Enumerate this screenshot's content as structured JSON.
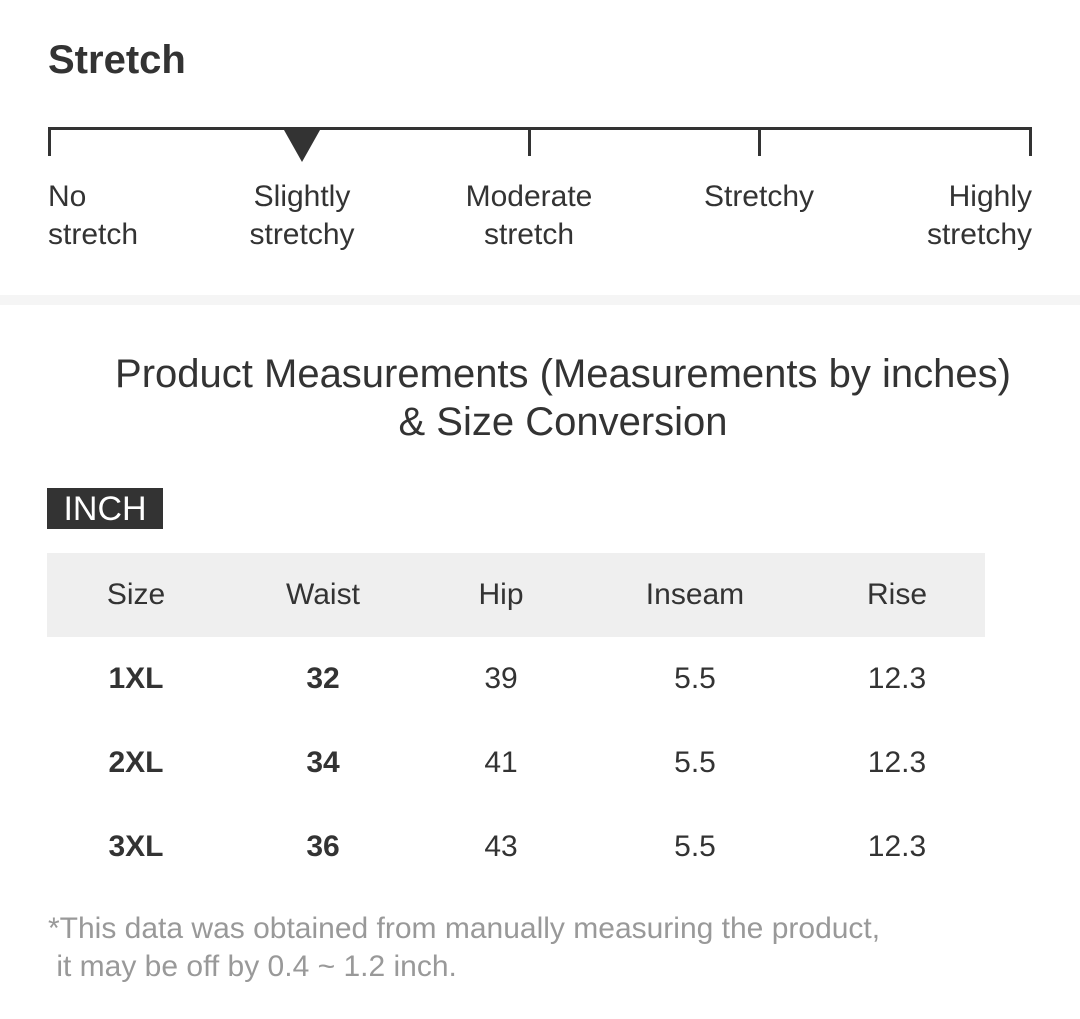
{
  "stretch": {
    "title": "Stretch",
    "levels": [
      {
        "line1": "No",
        "line2": "stretch"
      },
      {
        "line1": "Slightly",
        "line2": "stretchy"
      },
      {
        "line1": "Moderate",
        "line2": "stretch"
      },
      {
        "line1": "Stretchy",
        "line2": ""
      },
      {
        "line1": "Highly",
        "line2": "stretchy"
      }
    ],
    "selected_level": "Slightly stretchy",
    "marker_icon": "triangle-down-icon"
  },
  "measurements": {
    "title": "Product Measurements (Measurements by inches) & Size Conversion",
    "unit": "INCH",
    "headers": [
      "Size",
      "Waist",
      "Hip",
      "Inseam",
      "Rise"
    ],
    "rows": [
      [
        "1XL",
        "32",
        "39",
        "5.5",
        "12.3"
      ],
      [
        "2XL",
        "34",
        "41",
        "5.5",
        "12.3"
      ],
      [
        "3XL",
        "36",
        "43",
        "5.5",
        "12.3"
      ]
    ],
    "footnote_line1": "*This data was obtained from manually measuring the product,",
    "footnote_line2": " it may be off by 0.4 ~ 1.2 inch."
  },
  "colors": {
    "text": "#333333",
    "header_bg": "#efefef",
    "footnote": "#999999",
    "badge_bg": "#333333"
  }
}
